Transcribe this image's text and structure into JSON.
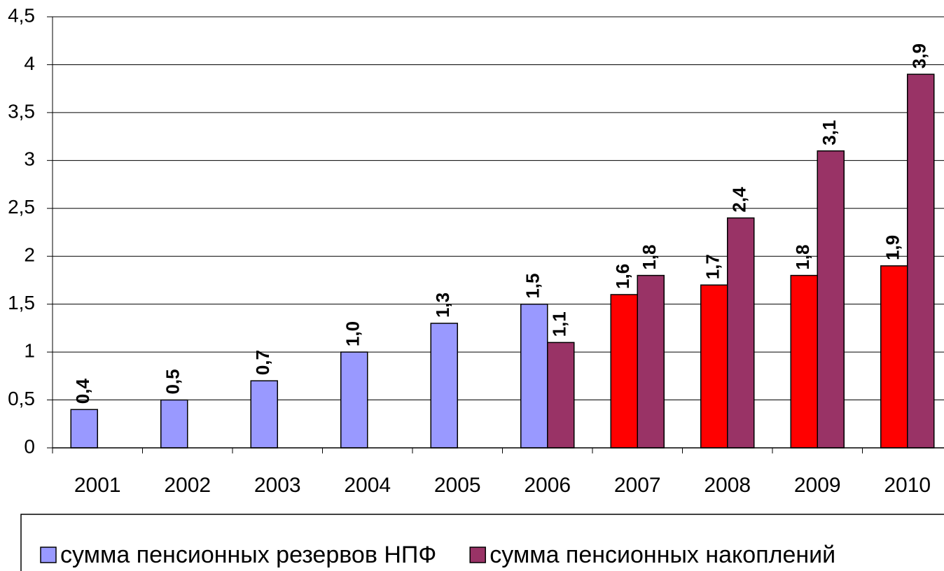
{
  "chart_data": {
    "type": "bar",
    "categories": [
      "2001",
      "2002",
      "2003",
      "2004",
      "2005",
      "2006",
      "2007",
      "2008",
      "2009",
      "2010"
    ],
    "series": [
      {
        "name": "сумма пенсионных резервов НПФ",
        "color": "#9999ff",
        "colors": [
          "#9999ff",
          "#9999ff",
          "#9999ff",
          "#9999ff",
          "#9999ff",
          "#9999ff",
          "#ff0000",
          "#ff0000",
          "#ff0000",
          "#ff0000"
        ],
        "values": [
          0.4,
          0.5,
          0.7,
          1.0,
          1.3,
          1.5,
          1.6,
          1.7,
          1.8,
          1.9
        ],
        "value_labels": [
          "0,4",
          "0,5",
          "0,7",
          "1,0",
          "1,3",
          "1,5",
          "1,6",
          "1,7",
          "1,8",
          "1,9"
        ]
      },
      {
        "name": "сумма пенсионных накоплений",
        "color": "#993366",
        "values": [
          null,
          null,
          null,
          null,
          null,
          1.1,
          1.8,
          2.4,
          3.1,
          3.9
        ],
        "value_labels": [
          null,
          null,
          null,
          null,
          null,
          "1,1",
          "1,8",
          "2,4",
          "3,1",
          "3,9"
        ]
      }
    ],
    "ylim": [
      0,
      4.5
    ],
    "yticks": [
      0,
      {
        "value": 0.5,
        "label": "0,5"
      },
      1,
      {
        "value": 1.5,
        "label": "1,5"
      },
      2,
      {
        "value": 2.5,
        "label": "2,5"
      },
      3,
      {
        "value": 3.5,
        "label": "3,5"
      },
      4,
      {
        "value": 4.5,
        "label": "4,5"
      }
    ],
    "grid": true,
    "legend": "bottom"
  }
}
